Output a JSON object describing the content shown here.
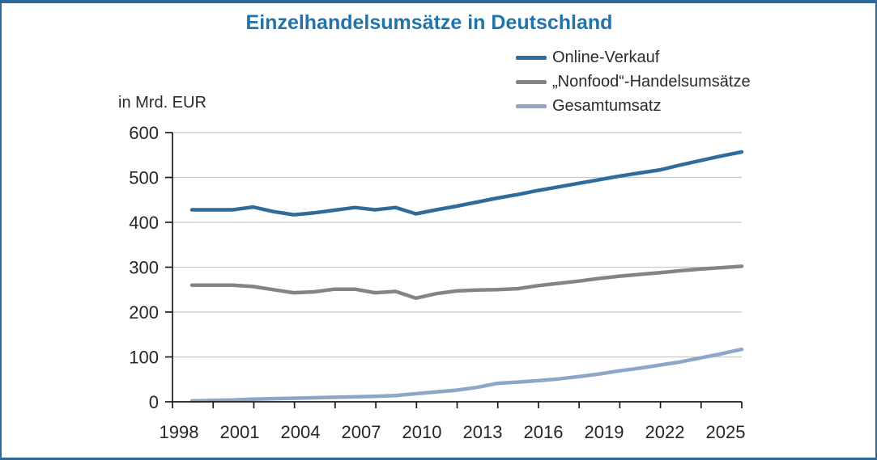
{
  "window": {
    "border_color": "#2e699b",
    "background_color": "#ffffff"
  },
  "title": "Einzelhandelsumsätze in Deutschland",
  "title_color": "#2173a8",
  "unit_label": "in Mrd. EUR",
  "chart_data": {
    "type": "line",
    "title": "Einzelhandelsumsätze in Deutschland",
    "ylabel": "in Mrd. EUR",
    "xlabel": "",
    "x": [
      1998,
      1999,
      2000,
      2001,
      2002,
      2003,
      2004,
      2005,
      2006,
      2007,
      2008,
      2009,
      2010,
      2011,
      2012,
      2013,
      2014,
      2015,
      2016,
      2017,
      2018,
      2019,
      2020,
      2021,
      2022,
      2023,
      2024,
      2025
    ],
    "x_tick_labels": [
      "1998",
      "2001",
      "2004",
      "2007",
      "2010",
      "2013",
      "2016",
      "2019",
      "2022",
      "2025"
    ],
    "y_ticks": [
      0,
      100,
      200,
      300,
      400,
      500,
      600
    ],
    "ylim": [
      0,
      600
    ],
    "grid": true,
    "legend_position": "top-right",
    "axis_color": "#1a1a1a",
    "grid_color": "#cac7c3",
    "tick_label_color": "#262626",
    "series": [
      {
        "name": "Online-Verkauf",
        "color": "#2f6c9c",
        "values": [
          428,
          428,
          428,
          434,
          424,
          417,
          421,
          427,
          433,
          428,
          433,
          419,
          428,
          436,
          445,
          454,
          462,
          471,
          479,
          487,
          495,
          503,
          510,
          517,
          528,
          538,
          548,
          557
        ]
      },
      {
        "name": "„Nonfood“-Handelsumsätze",
        "color": "#848484",
        "values": [
          260,
          260,
          260,
          257,
          250,
          243,
          245,
          251,
          251,
          243,
          246,
          231,
          241,
          247,
          249,
          250,
          252,
          259,
          264,
          269,
          275,
          280,
          284,
          288,
          292,
          296,
          299,
          302
        ]
      },
      {
        "name": "Gesamtumsatz",
        "color": "#8ea6c8",
        "values": [
          2,
          3,
          4,
          6,
          7,
          8,
          9,
          10,
          11,
          12,
          14,
          18,
          22,
          26,
          32,
          41,
          44,
          47,
          51,
          56,
          62,
          69,
          75,
          82,
          89,
          98,
          107,
          117
        ]
      }
    ]
  }
}
